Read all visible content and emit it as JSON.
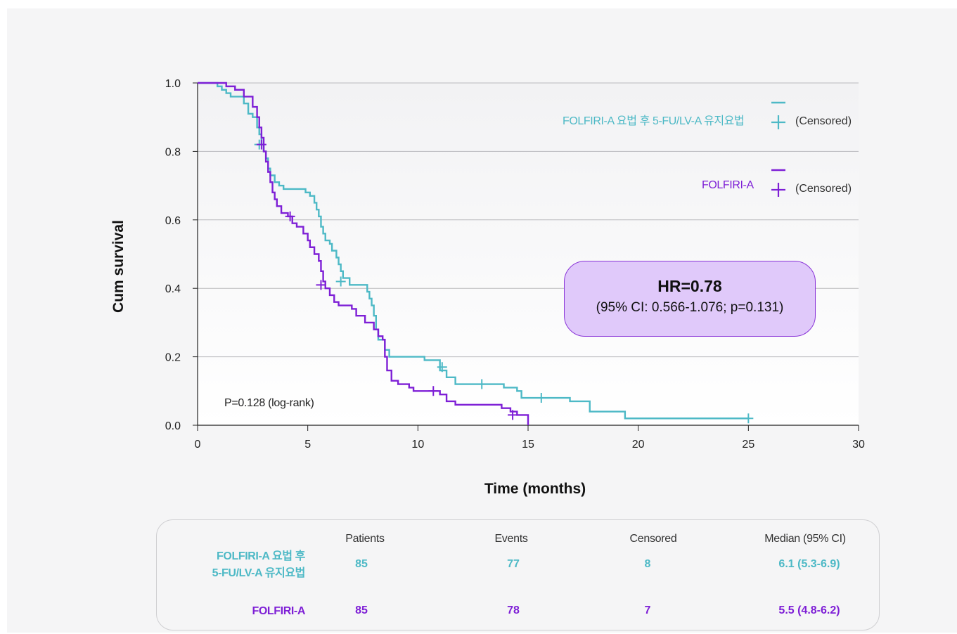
{
  "colors": {
    "teal": "#4db9c6",
    "purple": "#7e1fd6",
    "grid": "#b9b9bd",
    "axis": "#222222"
  },
  "chart_data": {
    "type": "line",
    "xlabel": "Time (months)",
    "ylabel": "Cum survival",
    "xlim": [
      0,
      30
    ],
    "ylim": [
      0,
      1.0
    ],
    "xticks": [
      0,
      5,
      10,
      15,
      20,
      25,
      30
    ],
    "yticks": [
      "0.0",
      "0.2",
      "0.4",
      "0.6",
      "0.8",
      "1.0"
    ],
    "grid": "horizontal",
    "legend_position": "top-right",
    "annotation": "P=0.128 (log-rank)",
    "series": [
      {
        "name": "FOLFIRI-A 요법 후 5-FU/LV-A 유지요법",
        "color": "#4db9c6",
        "points": [
          [
            0,
            1.0
          ],
          [
            0.7,
            1.0
          ],
          [
            0.9,
            0.99
          ],
          [
            1.1,
            0.98
          ],
          [
            1.3,
            0.97
          ],
          [
            1.5,
            0.96
          ],
          [
            2.1,
            0.94
          ],
          [
            2.3,
            0.91
          ],
          [
            2.5,
            0.9
          ],
          [
            2.7,
            0.87
          ],
          [
            2.8,
            0.85
          ],
          [
            2.9,
            0.82
          ],
          [
            3.0,
            0.8
          ],
          [
            3.1,
            0.78
          ],
          [
            3.2,
            0.75
          ],
          [
            3.3,
            0.73
          ],
          [
            3.5,
            0.71
          ],
          [
            3.7,
            0.7
          ],
          [
            3.9,
            0.69
          ],
          [
            4.9,
            0.68
          ],
          [
            5.1,
            0.67
          ],
          [
            5.3,
            0.65
          ],
          [
            5.4,
            0.63
          ],
          [
            5.5,
            0.61
          ],
          [
            5.6,
            0.58
          ],
          [
            5.7,
            0.56
          ],
          [
            5.8,
            0.54
          ],
          [
            6.0,
            0.53
          ],
          [
            6.1,
            0.51
          ],
          [
            6.3,
            0.49
          ],
          [
            6.4,
            0.47
          ],
          [
            6.5,
            0.45
          ],
          [
            6.6,
            0.43
          ],
          [
            6.9,
            0.41
          ],
          [
            7.7,
            0.39
          ],
          [
            7.8,
            0.37
          ],
          [
            7.9,
            0.35
          ],
          [
            8.0,
            0.32
          ],
          [
            8.1,
            0.28
          ],
          [
            8.2,
            0.25
          ],
          [
            8.5,
            0.22
          ],
          [
            8.7,
            0.2
          ],
          [
            10.3,
            0.19
          ],
          [
            11.0,
            0.16
          ],
          [
            11.3,
            0.14
          ],
          [
            11.7,
            0.12
          ],
          [
            13.9,
            0.11
          ],
          [
            14.5,
            0.1
          ],
          [
            14.7,
            0.08
          ],
          [
            16.9,
            0.07
          ],
          [
            17.8,
            0.04
          ],
          [
            19.4,
            0.02
          ],
          [
            25.0,
            0.02
          ]
        ],
        "censored": [
          [
            2.8,
            0.82
          ],
          [
            6.5,
            0.42
          ],
          [
            11.1,
            0.17
          ],
          [
            12.9,
            0.12
          ],
          [
            15.6,
            0.08
          ],
          [
            25.0,
            0.02
          ]
        ]
      },
      {
        "name": "FOLFIRI-A",
        "color": "#7e1fd6",
        "points": [
          [
            0,
            1.0
          ],
          [
            1.2,
            1.0
          ],
          [
            1.3,
            0.99
          ],
          [
            1.7,
            0.98
          ],
          [
            2.1,
            0.96
          ],
          [
            2.5,
            0.93
          ],
          [
            2.7,
            0.9
          ],
          [
            2.8,
            0.87
          ],
          [
            2.9,
            0.84
          ],
          [
            3.0,
            0.8
          ],
          [
            3.1,
            0.77
          ],
          [
            3.2,
            0.74
          ],
          [
            3.3,
            0.71
          ],
          [
            3.4,
            0.68
          ],
          [
            3.5,
            0.66
          ],
          [
            3.6,
            0.64
          ],
          [
            3.8,
            0.62
          ],
          [
            4.1,
            0.61
          ],
          [
            4.3,
            0.59
          ],
          [
            4.5,
            0.58
          ],
          [
            4.8,
            0.56
          ],
          [
            5.0,
            0.54
          ],
          [
            5.1,
            0.52
          ],
          [
            5.3,
            0.5
          ],
          [
            5.5,
            0.48
          ],
          [
            5.6,
            0.45
          ],
          [
            5.7,
            0.42
          ],
          [
            5.8,
            0.4
          ],
          [
            6.0,
            0.38
          ],
          [
            6.2,
            0.36
          ],
          [
            6.4,
            0.35
          ],
          [
            7.0,
            0.34
          ],
          [
            7.2,
            0.32
          ],
          [
            7.6,
            0.3
          ],
          [
            8.0,
            0.28
          ],
          [
            8.2,
            0.26
          ],
          [
            8.4,
            0.25
          ],
          [
            8.5,
            0.2
          ],
          [
            8.6,
            0.16
          ],
          [
            8.8,
            0.13
          ],
          [
            9.1,
            0.12
          ],
          [
            9.6,
            0.11
          ],
          [
            9.8,
            0.1
          ],
          [
            11.0,
            0.09
          ],
          [
            11.3,
            0.07
          ],
          [
            11.7,
            0.06
          ],
          [
            13.8,
            0.05
          ],
          [
            14.2,
            0.04
          ],
          [
            14.5,
            0.03
          ],
          [
            15.0,
            0.03
          ],
          [
            15.0,
            0.0
          ]
        ],
        "censored": [
          [
            2.9,
            0.82
          ],
          [
            4.2,
            0.61
          ],
          [
            5.6,
            0.41
          ],
          [
            10.7,
            0.1
          ],
          [
            14.3,
            0.03
          ]
        ]
      }
    ]
  },
  "legend": {
    "teal_label": "FOLFIRI-A 요법 후 5-FU/LV-A 유지요법",
    "purple_label": "FOLFIRI-A",
    "censored_label": "(Censored)"
  },
  "hr_box": {
    "title": "HR=0.78",
    "ci": "(95% CI: 0.566-1.076; p=0.131)"
  },
  "stats_table": {
    "headers": [
      "Patients",
      "Events",
      "Censored",
      "Median (95% CI)"
    ],
    "rows": [
      {
        "label_line1": "FOLFIRI-A 요법 후",
        "label_line2": "5-FU/LV-A 유지요법",
        "patients": "85",
        "events": "77",
        "censored": "8",
        "median": "6.1 (5.3-6.9)"
      },
      {
        "label_line1": "FOLFIRI-A",
        "patients": "85",
        "events": "78",
        "censored": "7",
        "median": "5.5 (4.8-6.2)"
      }
    ]
  }
}
